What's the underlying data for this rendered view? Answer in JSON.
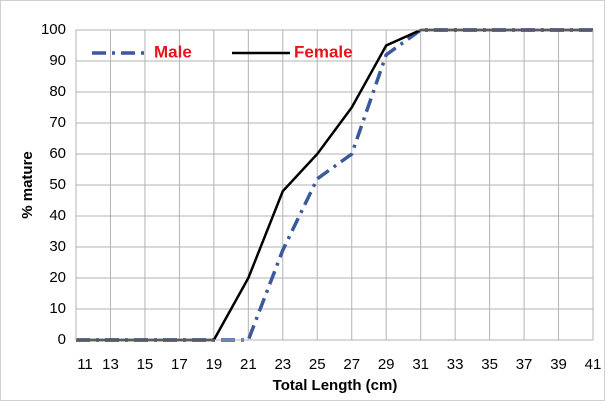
{
  "chart_data": {
    "type": "line",
    "x": [
      11,
      13,
      15,
      17,
      19,
      21,
      23,
      25,
      27,
      29,
      31,
      33,
      35,
      37,
      39,
      41
    ],
    "series": [
      {
        "name": "Male",
        "color": "#3a5a9c",
        "values": [
          0,
          0,
          0,
          0,
          0,
          0,
          29,
          52,
          60,
          92,
          100,
          100,
          100,
          100,
          100,
          100
        ]
      },
      {
        "name": "Female",
        "color": "#000000",
        "values": [
          0,
          0,
          0,
          0,
          0,
          20,
          48,
          60,
          75,
          95,
          100,
          100,
          100,
          100,
          100,
          100
        ]
      }
    ],
    "xlabel": "Total Length (cm)",
    "ylabel": "% mature",
    "xlim": [
      11,
      41
    ],
    "ylim": [
      0,
      100
    ],
    "xticks": [
      11,
      13,
      15,
      17,
      19,
      21,
      23,
      25,
      27,
      29,
      31,
      33,
      35,
      37,
      39,
      41
    ],
    "yticks": [
      0,
      10,
      20,
      30,
      40,
      50,
      60,
      70,
      80,
      90,
      100
    ],
    "grid": true,
    "legend": "upper left"
  }
}
